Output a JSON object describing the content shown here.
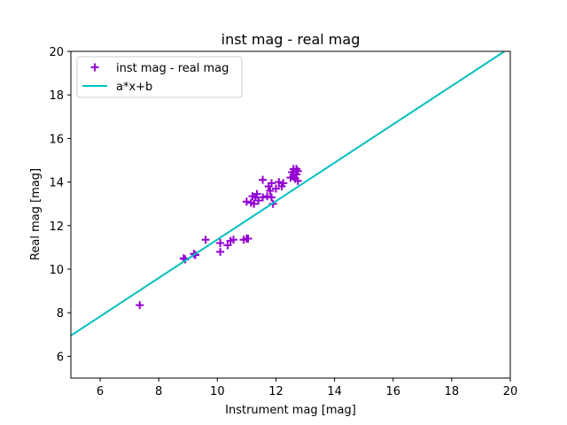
{
  "chart_data": {
    "type": "scatter",
    "title": "inst mag - real mag",
    "xlabel": "Instrument mag [mag]",
    "ylabel": "Real mag [mag]",
    "xlim": [
      5,
      20
    ],
    "ylim": [
      5,
      20
    ],
    "xticks": [
      6,
      8,
      10,
      12,
      14,
      16,
      18,
      20
    ],
    "yticks": [
      6,
      8,
      10,
      12,
      14,
      16,
      18,
      20
    ],
    "grid": false,
    "legend_position": "top-left",
    "series": [
      {
        "name": "inst mag - real mag",
        "kind": "scatter",
        "marker": "+",
        "color": "#9400d3",
        "points": [
          [
            7.35,
            8.35
          ],
          [
            8.85,
            10.5
          ],
          [
            8.9,
            10.45
          ],
          [
            9.2,
            10.7
          ],
          [
            9.25,
            10.65
          ],
          [
            9.6,
            11.35
          ],
          [
            10.1,
            11.2
          ],
          [
            10.1,
            10.8
          ],
          [
            10.35,
            11.1
          ],
          [
            10.45,
            11.3
          ],
          [
            10.55,
            11.35
          ],
          [
            10.9,
            11.35
          ],
          [
            11.0,
            11.4
          ],
          [
            11.05,
            11.4
          ],
          [
            11.0,
            13.1
          ],
          [
            11.15,
            13.05
          ],
          [
            11.2,
            13.35
          ],
          [
            11.25,
            13.0
          ],
          [
            11.3,
            13.3
          ],
          [
            11.35,
            13.45
          ],
          [
            11.4,
            13.15
          ],
          [
            11.55,
            13.3
          ],
          [
            11.55,
            14.1
          ],
          [
            11.7,
            13.35
          ],
          [
            11.75,
            13.8
          ],
          [
            11.8,
            13.6
          ],
          [
            11.85,
            13.95
          ],
          [
            11.85,
            13.3
          ],
          [
            11.9,
            13.0
          ],
          [
            12.0,
            13.7
          ],
          [
            12.1,
            14.0
          ],
          [
            12.2,
            13.8
          ],
          [
            12.25,
            13.95
          ],
          [
            12.5,
            14.2
          ],
          [
            12.55,
            14.45
          ],
          [
            12.6,
            14.25
          ],
          [
            12.6,
            14.6
          ],
          [
            12.65,
            14.15
          ],
          [
            12.7,
            14.35
          ],
          [
            12.7,
            14.6
          ],
          [
            12.75,
            14.5
          ],
          [
            12.75,
            14.05
          ]
        ]
      },
      {
        "name": "a*x+b",
        "kind": "line",
        "color": "#00bfbf",
        "points": [
          [
            5,
            6.95
          ],
          [
            19.8,
            20
          ]
        ]
      }
    ]
  }
}
